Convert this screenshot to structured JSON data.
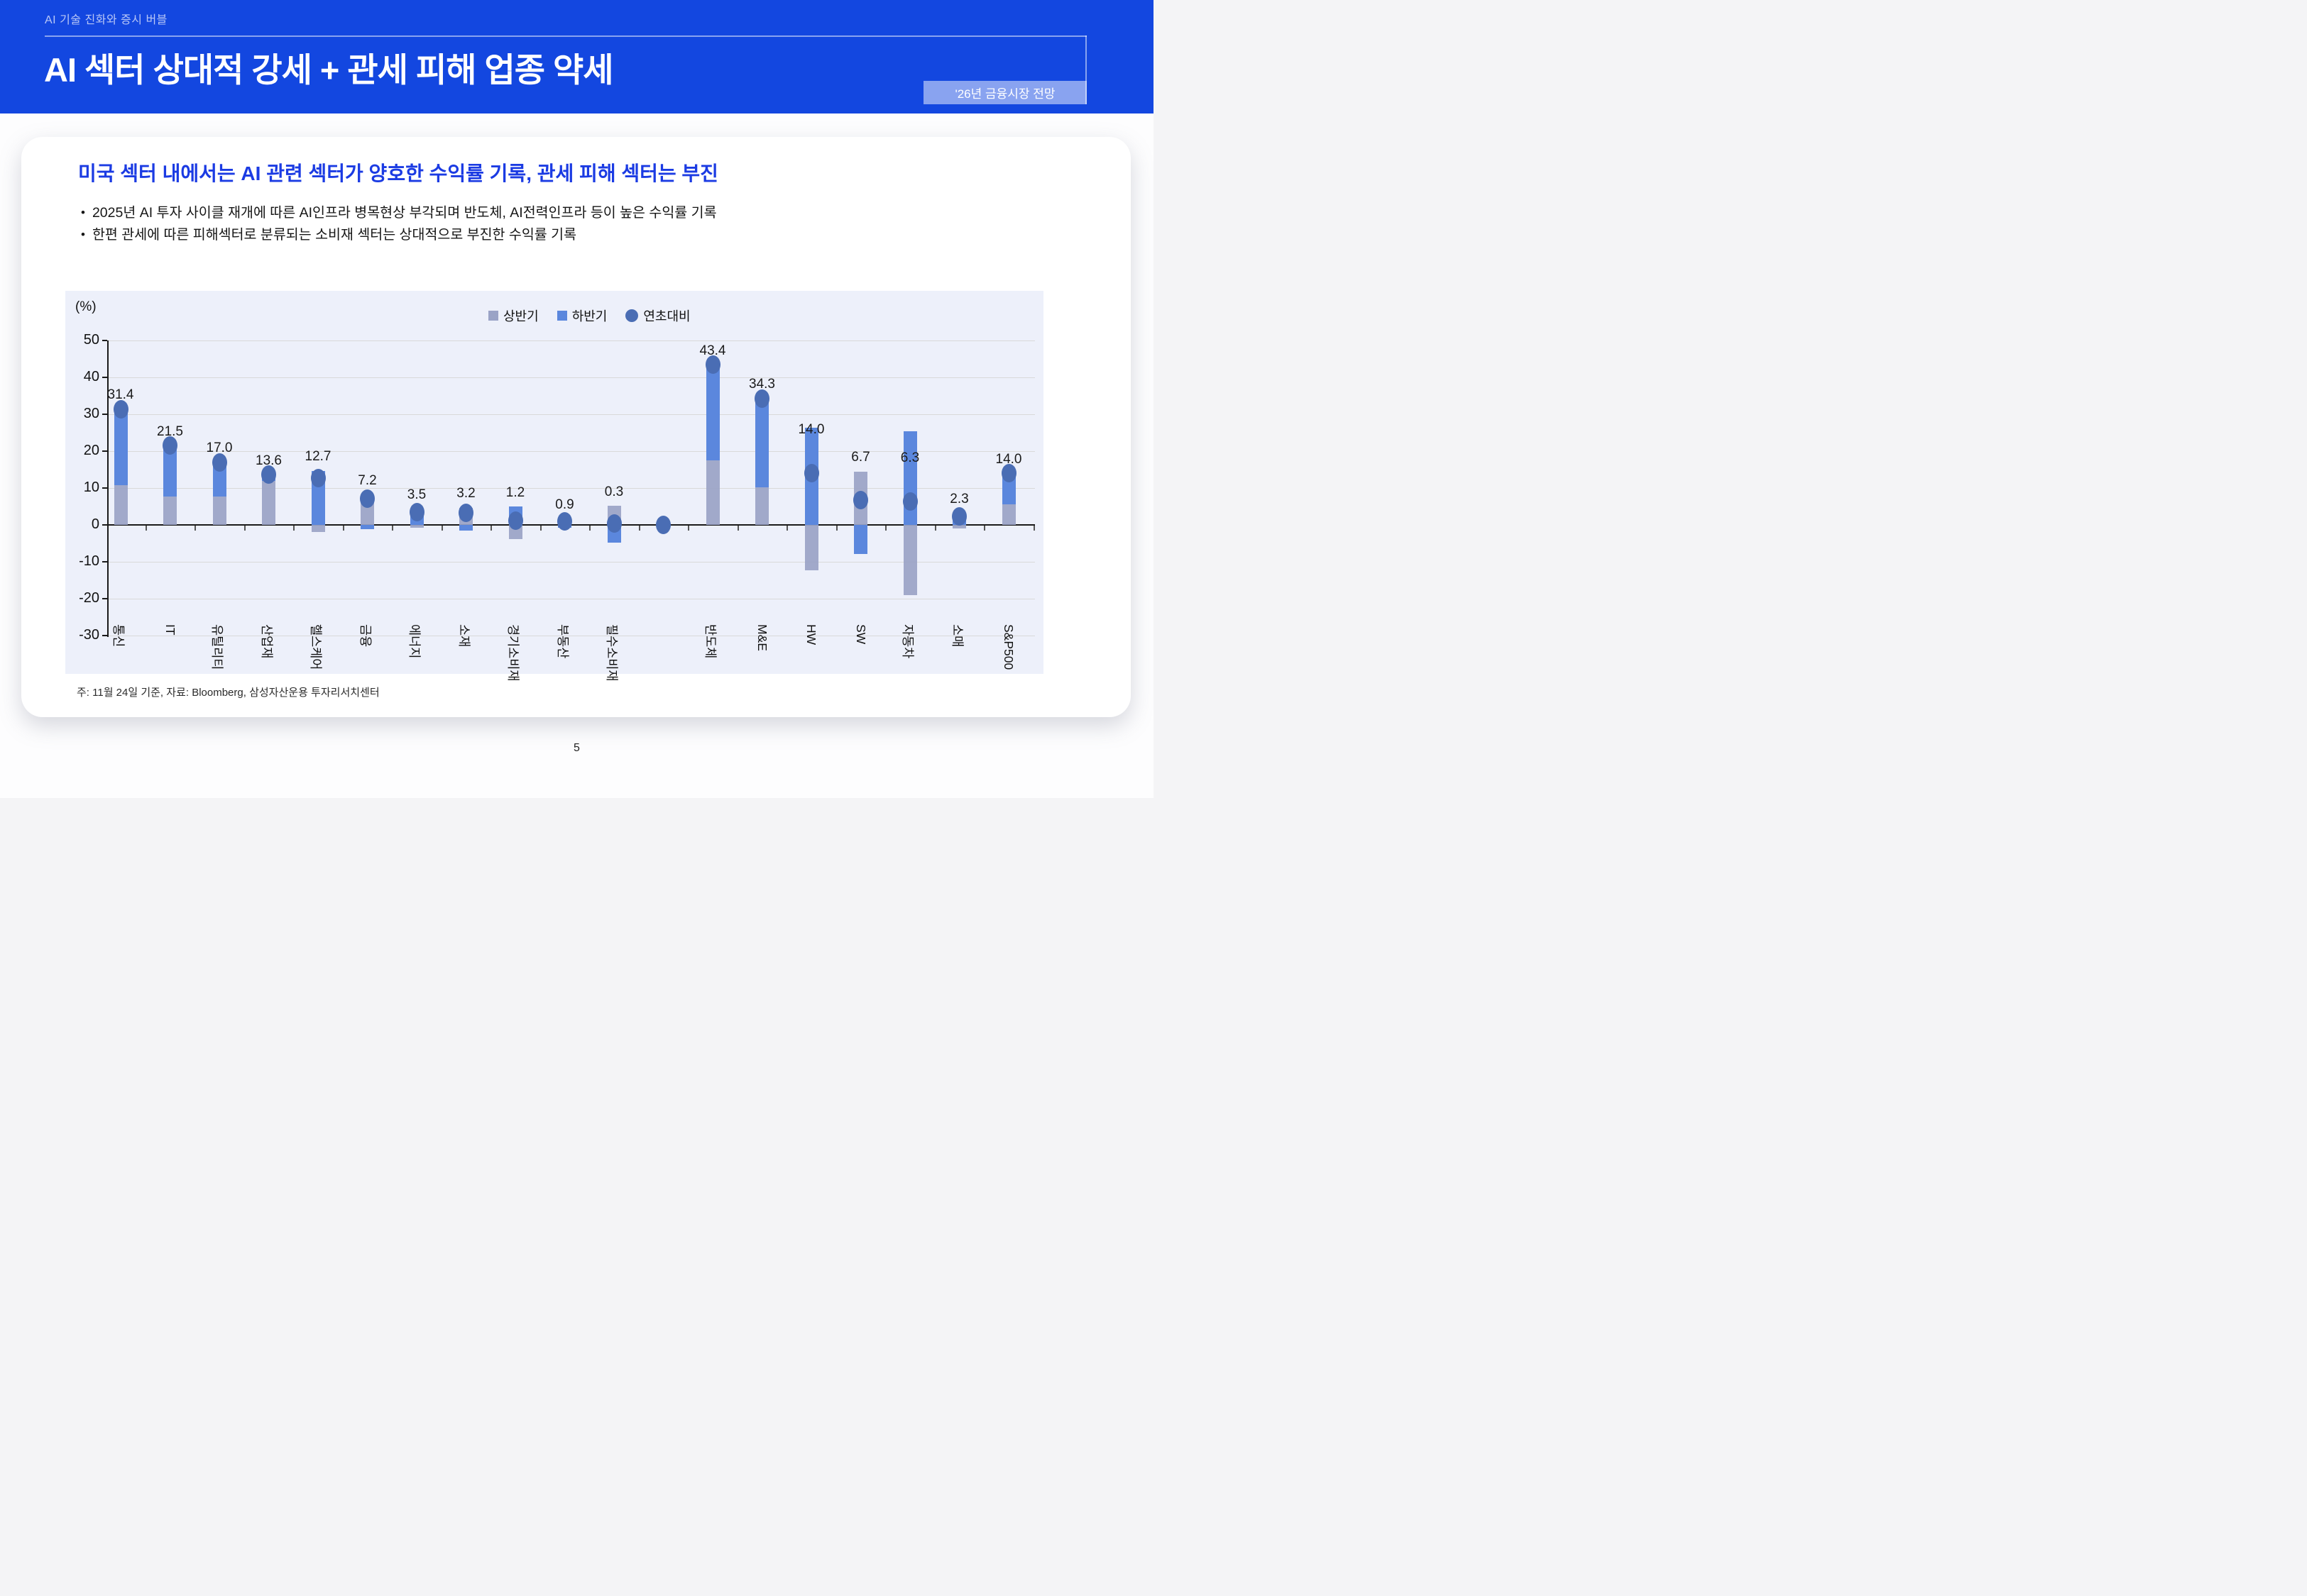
{
  "slide": {
    "kicker": "AI 기술 진화와 증시 버블",
    "title": "AI 섹터 상대적 강세 + 관세 피해 업종 약세",
    "badge": "'26년 금융시장 전망",
    "page_number": "5"
  },
  "card": {
    "headline": "미국 섹터 내에서는 AI 관련 섹터가 양호한 수익률 기록, 관세 피해 섹터는 부진",
    "bullets": [
      "2025년 AI 투자 사이클 재개에 따른 AI인프라 병목현상 부각되며 반도체, AI전력인프라 등이 높은 수익률 기록",
      "한편 관세에 따른 피해섹터로 분류되는 소비재 섹터는 상대적으로 부진한 수익률 기록"
    ],
    "footnote": "주: 11월 24일 기준, 자료: Bloomberg, 삼성자산운용 투자리서치센터"
  },
  "chart_data": {
    "type": "bar",
    "subtype": "stacked-bars-with-point-series",
    "unit_label": "(%)",
    "ylim": [
      -30,
      50
    ],
    "ytick_step": 10,
    "grid": true,
    "legend_position": "top-center",
    "categories": [
      "통신",
      "IT",
      "유틸리티",
      "산업재",
      "헬스케어",
      "금융",
      "에너지",
      "소재",
      "경기소비재",
      "부동산",
      "필수소비재",
      "",
      "반도체",
      "M&E",
      "HW",
      "SW",
      "자동차",
      "소매",
      "S&P500"
    ],
    "series": [
      {
        "name": "상반기",
        "render": "bar",
        "values": [
          10.7,
          7.7,
          7.7,
          12.0,
          -2.0,
          8.3,
          -0.8,
          4.7,
          -3.8,
          1.6,
          5.2,
          null,
          17.5,
          10.1,
          -12.4,
          14.5,
          -19.0,
          -0.9,
          5.5
        ]
      },
      {
        "name": "하반기",
        "render": "bar",
        "values": [
          20.7,
          13.8,
          9.3,
          1.6,
          14.7,
          -1.1,
          4.3,
          -1.5,
          5.0,
          -0.7,
          -4.9,
          null,
          25.9,
          24.2,
          26.4,
          -7.8,
          25.3,
          3.2,
          8.5
        ]
      },
      {
        "name": "연초대비",
        "render": "point",
        "values": [
          31.4,
          21.5,
          17.0,
          13.6,
          12.7,
          7.2,
          3.5,
          3.2,
          1.2,
          0.9,
          0.3,
          0.0,
          43.4,
          34.3,
          14.0,
          6.7,
          6.3,
          2.3,
          14.0
        ]
      }
    ],
    "data_labels": [
      "31.4",
      "21.5",
      "17.0",
      "13.6",
      "12.7",
      "7.2",
      "3.5",
      "3.2",
      "1.2",
      "0.9",
      "0.3",
      "",
      "43.4",
      "34.3",
      "14.0",
      "6.7",
      "6.3",
      "2.3",
      "14.0"
    ],
    "colors": {
      "h1_bar": "#9aa3c6",
      "h2_bar": "#5b87dd",
      "ytd_dot": "#4a6db4",
      "plot_bg": "#edf0fa",
      "gridline": "#d9d9d9",
      "axis": "#1a1a1a"
    }
  }
}
